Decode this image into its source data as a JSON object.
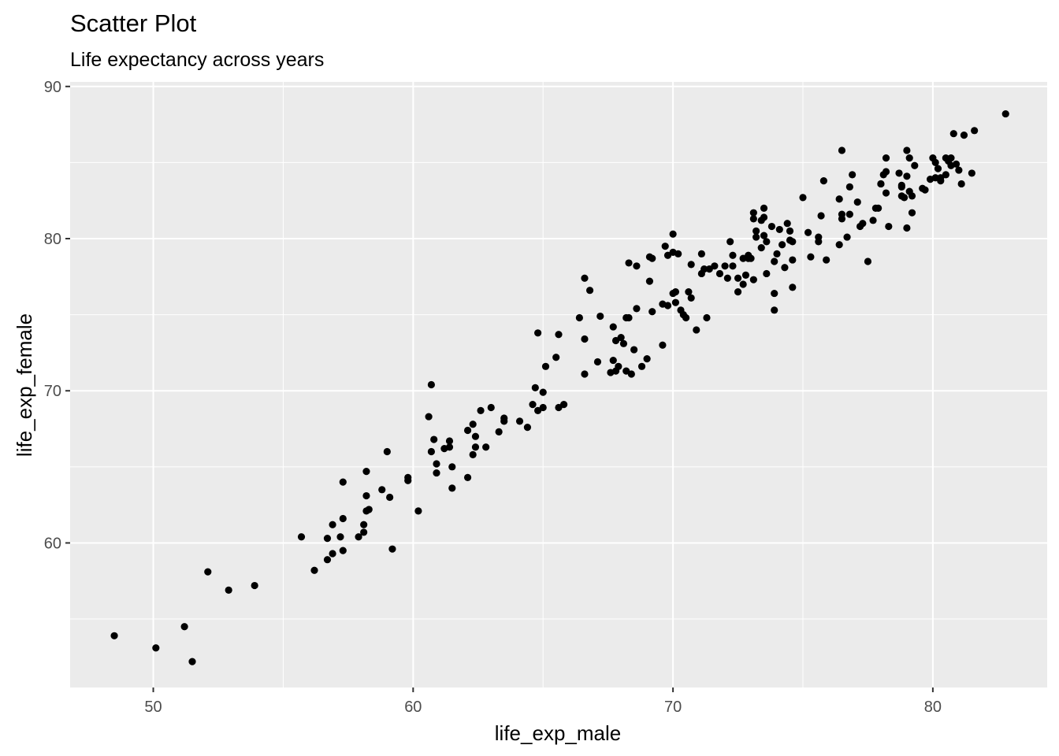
{
  "chart_data": {
    "type": "scatter",
    "title": "Scatter Plot",
    "subtitle": "Life expectancy across years",
    "xlabel": "life_exp_male",
    "ylabel": "life_exp_female",
    "xlim": [
      46.8,
      84.4
    ],
    "ylim": [
      50.5,
      90.3
    ],
    "x_ticks": [
      50,
      60,
      70,
      80
    ],
    "y_ticks": [
      60,
      70,
      80,
      90
    ],
    "x_tick_labels": [
      "50",
      "60",
      "70",
      "80"
    ],
    "y_tick_labels": [
      "60",
      "70",
      "80",
      "90"
    ],
    "grid": true,
    "legend": "none",
    "colors": {
      "panel": "#EBEBEB",
      "grid": "#FFFFFF",
      "point": "#000000",
      "tick_label": "#4D4D4D"
    },
    "points": [
      [
        48.5,
        53.9
      ],
      [
        50.1,
        53.1
      ],
      [
        51.2,
        54.5
      ],
      [
        51.5,
        52.2
      ],
      [
        52.1,
        58.1
      ],
      [
        52.9,
        56.9
      ],
      [
        53.9,
        57.2
      ],
      [
        55.7,
        60.4
      ],
      [
        56.2,
        58.2
      ],
      [
        56.7,
        60.3
      ],
      [
        56.7,
        58.9
      ],
      [
        56.9,
        61.2
      ],
      [
        56.9,
        59.3
      ],
      [
        57.2,
        60.4
      ],
      [
        57.3,
        61.6
      ],
      [
        57.3,
        59.5
      ],
      [
        57.3,
        64.0
      ],
      [
        57.9,
        60.4
      ],
      [
        58.1,
        61.2
      ],
      [
        58.1,
        60.7
      ],
      [
        58.2,
        63.1
      ],
      [
        58.2,
        64.7
      ],
      [
        58.3,
        62.2
      ],
      [
        58.2,
        62.1
      ],
      [
        58.8,
        63.5
      ],
      [
        59.0,
        66.0
      ],
      [
        59.1,
        63.0
      ],
      [
        59.2,
        59.6
      ],
      [
        59.8,
        64.3
      ],
      [
        59.8,
        64.1
      ],
      [
        60.2,
        62.1
      ],
      [
        60.6,
        68.3
      ],
      [
        60.7,
        70.4
      ],
      [
        60.7,
        66.0
      ],
      [
        60.8,
        66.8
      ],
      [
        60.9,
        65.2
      ],
      [
        60.9,
        64.6
      ],
      [
        61.2,
        66.2
      ],
      [
        61.4,
        66.3
      ],
      [
        61.4,
        66.7
      ],
      [
        61.5,
        63.6
      ],
      [
        61.5,
        65.0
      ],
      [
        62.1,
        64.3
      ],
      [
        62.1,
        67.4
      ],
      [
        62.3,
        67.8
      ],
      [
        62.3,
        65.8
      ],
      [
        62.4,
        67.0
      ],
      [
        62.4,
        66.3
      ],
      [
        62.6,
        68.7
      ],
      [
        62.8,
        66.3
      ],
      [
        63.0,
        68.9
      ],
      [
        63.3,
        67.3
      ],
      [
        63.5,
        68.0
      ],
      [
        63.5,
        68.2
      ],
      [
        64.1,
        68.0
      ],
      [
        64.4,
        67.6
      ],
      [
        64.6,
        69.1
      ],
      [
        64.7,
        70.2
      ],
      [
        64.8,
        68.7
      ],
      [
        64.8,
        73.8
      ],
      [
        65.0,
        69.9
      ],
      [
        65.0,
        68.9
      ],
      [
        65.1,
        71.6
      ],
      [
        65.5,
        72.2
      ],
      [
        65.6,
        73.7
      ],
      [
        65.6,
        68.9
      ],
      [
        65.8,
        69.1
      ],
      [
        66.4,
        74.8
      ],
      [
        66.6,
        77.4
      ],
      [
        66.6,
        73.4
      ],
      [
        66.6,
        71.1
      ],
      [
        66.8,
        76.6
      ],
      [
        67.1,
        71.9
      ],
      [
        67.2,
        74.9
      ],
      [
        67.6,
        71.2
      ],
      [
        67.7,
        74.2
      ],
      [
        67.7,
        72.0
      ],
      [
        67.8,
        73.3
      ],
      [
        67.8,
        71.3
      ],
      [
        67.9,
        71.6
      ],
      [
        68.0,
        73.5
      ],
      [
        68.1,
        73.1
      ],
      [
        68.2,
        71.3
      ],
      [
        68.2,
        74.8
      ],
      [
        68.3,
        78.4
      ],
      [
        68.3,
        74.8
      ],
      [
        68.4,
        71.1
      ],
      [
        68.5,
        72.7
      ],
      [
        68.6,
        75.4
      ],
      [
        68.6,
        78.2
      ],
      [
        68.8,
        71.6
      ],
      [
        69.0,
        72.1
      ],
      [
        69.1,
        78.8
      ],
      [
        69.1,
        77.2
      ],
      [
        69.2,
        78.7
      ],
      [
        69.2,
        75.2
      ],
      [
        69.6,
        73.0
      ],
      [
        69.6,
        75.7
      ],
      [
        69.7,
        79.5
      ],
      [
        69.8,
        78.9
      ],
      [
        69.8,
        75.6
      ],
      [
        70.0,
        80.3
      ],
      [
        70.0,
        79.1
      ],
      [
        70.0,
        76.4
      ],
      [
        70.1,
        75.8
      ],
      [
        70.1,
        76.5
      ],
      [
        70.2,
        79.0
      ],
      [
        70.3,
        75.3
      ],
      [
        70.4,
        75.0
      ],
      [
        70.5,
        74.8
      ],
      [
        70.6,
        76.5
      ],
      [
        70.7,
        76.1
      ],
      [
        70.7,
        78.3
      ],
      [
        70.9,
        74.0
      ],
      [
        71.1,
        79.0
      ],
      [
        71.1,
        77.7
      ],
      [
        71.2,
        78.0
      ],
      [
        71.3,
        74.8
      ],
      [
        71.4,
        78.0
      ],
      [
        71.6,
        78.2
      ],
      [
        71.8,
        77.7
      ],
      [
        72.0,
        78.2
      ],
      [
        72.1,
        77.4
      ],
      [
        72.2,
        79.8
      ],
      [
        72.3,
        78.2
      ],
      [
        72.3,
        78.9
      ],
      [
        72.5,
        76.5
      ],
      [
        72.5,
        77.4
      ],
      [
        72.7,
        77.0
      ],
      [
        72.7,
        78.7
      ],
      [
        72.8,
        77.6
      ],
      [
        72.9,
        78.9
      ],
      [
        72.9,
        78.7
      ],
      [
        73.0,
        78.7
      ],
      [
        73.1,
        77.3
      ],
      [
        73.1,
        81.7
      ],
      [
        73.1,
        81.3
      ],
      [
        73.2,
        80.5
      ],
      [
        73.2,
        80.1
      ],
      [
        73.4,
        79.4
      ],
      [
        73.4,
        81.2
      ],
      [
        73.5,
        80.2
      ],
      [
        73.5,
        82.0
      ],
      [
        73.5,
        81.4
      ],
      [
        73.6,
        79.8
      ],
      [
        73.6,
        77.7
      ],
      [
        73.8,
        80.8
      ],
      [
        73.9,
        78.5
      ],
      [
        73.9,
        75.3
      ],
      [
        73.9,
        76.4
      ],
      [
        74.0,
        79.0
      ],
      [
        74.1,
        80.6
      ],
      [
        74.2,
        79.6
      ],
      [
        74.3,
        78.1
      ],
      [
        74.4,
        81.0
      ],
      [
        74.5,
        79.9
      ],
      [
        74.5,
        80.5
      ],
      [
        74.6,
        79.8
      ],
      [
        74.6,
        78.6
      ],
      [
        74.6,
        76.8
      ],
      [
        75.0,
        82.7
      ],
      [
        75.2,
        80.4
      ],
      [
        75.3,
        78.8
      ],
      [
        75.6,
        80.1
      ],
      [
        75.6,
        79.8
      ],
      [
        75.7,
        81.5
      ],
      [
        75.8,
        83.8
      ],
      [
        75.9,
        78.6
      ],
      [
        76.4,
        79.6
      ],
      [
        76.4,
        82.6
      ],
      [
        76.5,
        85.8
      ],
      [
        76.5,
        81.6
      ],
      [
        76.5,
        81.3
      ],
      [
        76.7,
        80.1
      ],
      [
        76.8,
        83.4
      ],
      [
        76.8,
        81.6
      ],
      [
        76.9,
        84.2
      ],
      [
        77.1,
        82.4
      ],
      [
        77.2,
        80.8
      ],
      [
        77.3,
        81.0
      ],
      [
        77.5,
        78.5
      ],
      [
        77.7,
        81.2
      ],
      [
        77.8,
        82.0
      ],
      [
        77.9,
        82.0
      ],
      [
        78.0,
        83.6
      ],
      [
        78.0,
        83.6
      ],
      [
        78.1,
        84.2
      ],
      [
        78.2,
        84.4
      ],
      [
        78.2,
        83.0
      ],
      [
        78.2,
        85.3
      ],
      [
        78.3,
        80.8
      ],
      [
        78.7,
        84.3
      ],
      [
        78.8,
        83.5
      ],
      [
        78.8,
        83.4
      ],
      [
        78.8,
        82.8
      ],
      [
        78.9,
        82.7
      ],
      [
        79.0,
        80.7
      ],
      [
        79.0,
        85.8
      ],
      [
        79.0,
        84.1
      ],
      [
        79.1,
        83.1
      ],
      [
        79.1,
        85.3
      ],
      [
        79.2,
        82.8
      ],
      [
        79.2,
        81.7
      ],
      [
        79.3,
        84.8
      ],
      [
        79.6,
        83.3
      ],
      [
        79.7,
        83.2
      ],
      [
        79.9,
        83.9
      ],
      [
        80.0,
        85.3
      ],
      [
        80.1,
        85.0
      ],
      [
        80.1,
        84.0
      ],
      [
        80.2,
        84.6
      ],
      [
        80.3,
        83.8
      ],
      [
        80.3,
        84.0
      ],
      [
        80.5,
        85.3
      ],
      [
        80.5,
        84.2
      ],
      [
        80.6,
        85.1
      ],
      [
        80.7,
        84.8
      ],
      [
        80.7,
        85.3
      ],
      [
        80.8,
        86.9
      ],
      [
        80.9,
        84.9
      ],
      [
        81.0,
        84.5
      ],
      [
        81.1,
        83.6
      ],
      [
        81.2,
        86.8
      ],
      [
        81.5,
        84.3
      ],
      [
        81.6,
        87.1
      ],
      [
        82.8,
        88.2
      ]
    ]
  }
}
